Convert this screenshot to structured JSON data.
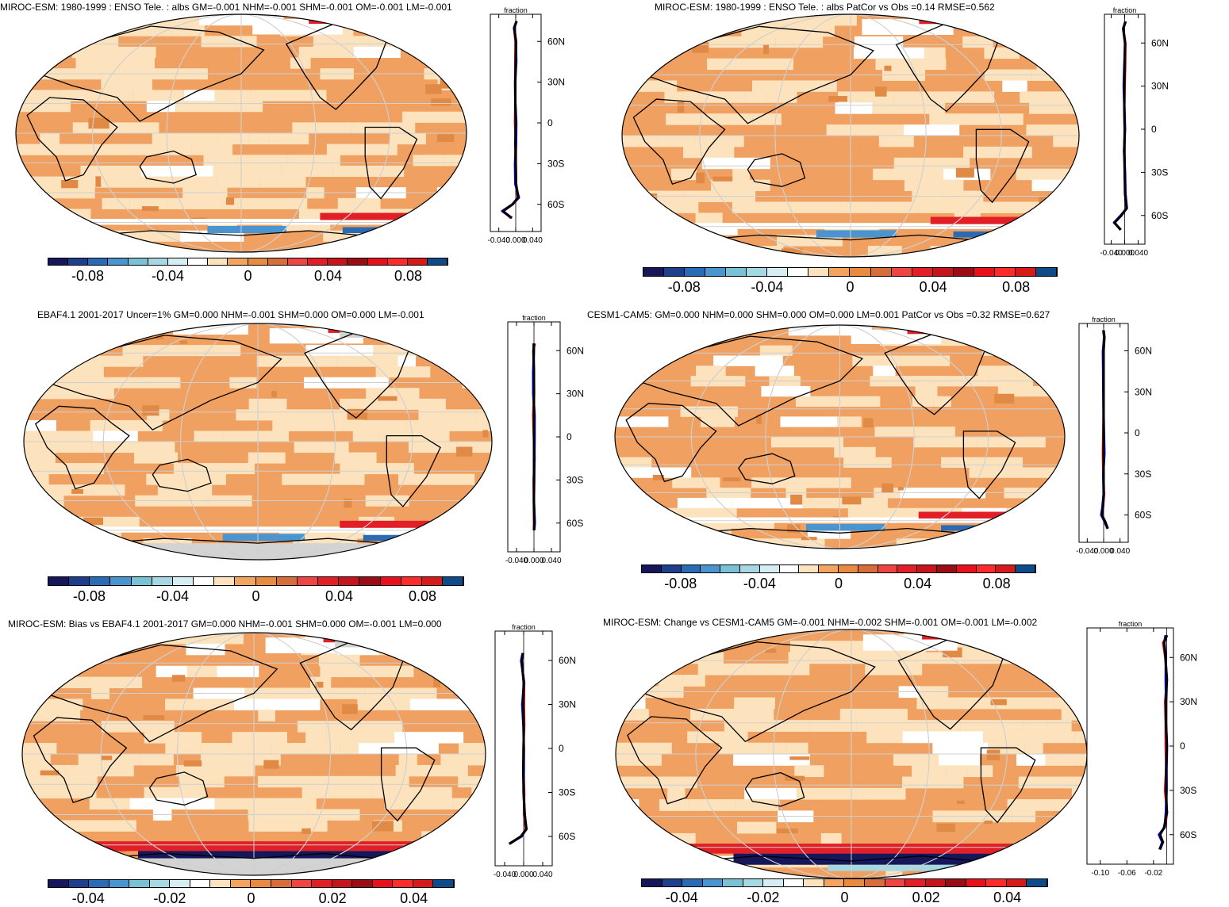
{
  "colors": {
    "palette": [
      "#15175a",
      "#1d3f8c",
      "#2a6bb6",
      "#4a95cf",
      "#79c2d5",
      "#a5d8e2",
      "#d6eef3",
      "#ffffff",
      "#fde3bd",
      "#f3a45e",
      "#e88a3f",
      "#d66d3a",
      "#ee4442",
      "#e21f26",
      "#c6131c",
      "#9a0d14",
      "#e8101a",
      "#ff2a2a",
      "#d61a1a",
      "#0d4b8a"
    ],
    "ocean_light": "#fde3bd",
    "ocean_mid": "#f0a060",
    "land_missing": "#d3d3d3",
    "profile_obs": "#ff0000",
    "profile_model": "#0000ff",
    "profile_mean": "#000000"
  },
  "panels": [
    {
      "id": "p1",
      "title": "MIROC-ESM: 1980-1999 : ENSO Tele. : albs GM=-0.001 NHM=-0.001 SHM=-0.001 OM=-0.001 LM=-0.001",
      "profile_label": "fraction",
      "lat_ticks": [
        "60N",
        "30N",
        "0",
        "30S",
        "60S"
      ],
      "x_ticks": [
        "-0.040",
        "0.000",
        "0.040"
      ],
      "colorbar_labels": [
        "-0.08",
        "-0.04",
        "0",
        "0.04",
        "0.08"
      ],
      "missing": false
    },
    {
      "id": "p2",
      "title": "MIROC-ESM: 1980-1999 : ENSO Tele. : albs PatCor vs Obs =0.14 RMSE=0.562",
      "profile_label": "fraction",
      "lat_ticks": [
        "60N",
        "30N",
        "0",
        "30S",
        "60S"
      ],
      "x_ticks": [
        "-0.040",
        "0.000",
        "0.040"
      ],
      "colorbar_labels": [
        "-0.08",
        "-0.04",
        "0",
        "0.04",
        "0.08"
      ],
      "missing": false
    },
    {
      "id": "p3",
      "title": "EBAF4.1 2001-2017 Uncer=1% GM=0.000 NHM=-0.001 SHM=0.000 OM=0.000 LM=-0.001",
      "profile_label": "fraction",
      "lat_ticks": [
        "60N",
        "30N",
        "0",
        "30S",
        "60S"
      ],
      "x_ticks": [
        "-0.040",
        "0.000",
        "0.040"
      ],
      "colorbar_labels": [
        "-0.08",
        "-0.04",
        "0",
        "0.04",
        "0.08"
      ],
      "missing": true
    },
    {
      "id": "p4",
      "title": "CESM1-CAM5: GM=0.000 NHM=0.000 SHM=0.000 OM=0.000 LM=0.001 PatCor vs Obs =0.32 RMSE=0.627",
      "profile_label": "fraction",
      "lat_ticks": [
        "60N",
        "30N",
        "0",
        "30S",
        "60S"
      ],
      "x_ticks": [
        "-0.040",
        "0.000",
        "0.040"
      ],
      "colorbar_labels": [
        "-0.08",
        "-0.04",
        "0",
        "0.04",
        "0.08"
      ],
      "missing": false
    },
    {
      "id": "p5",
      "title": "MIROC-ESM: Bias vs EBAF4.1 2001-2017 GM=0.000 NHM=-0.001 SHM=0.000 OM=-0.001 LM=0.000",
      "profile_label": "fraction",
      "lat_ticks": [
        "60N",
        "30N",
        "0",
        "30S",
        "60S"
      ],
      "x_ticks": [
        "-0.040",
        "0.000",
        "0.040"
      ],
      "colorbar_labels": [
        "-0.04",
        "-0.02",
        "0",
        "0.02",
        "0.04"
      ],
      "missing": true
    },
    {
      "id": "p6",
      "title": "MIROC-ESM: Change vs CESM1-CAM5 GM=-0.001 NHM=-0.002 SHM=-0.001 OM=-0.001 LM=-0.002",
      "profile_label": "fraction",
      "lat_ticks": [
        "60N",
        "30N",
        "0",
        "30S",
        "60S"
      ],
      "x_ticks": [
        "-0.10",
        "-0.06",
        "-0.02"
      ],
      "colorbar_labels": [
        "-0.04",
        "-0.02",
        "0",
        "0.02",
        "0.04"
      ],
      "missing": false
    }
  ],
  "chart_data": [
    {
      "type": "heatmap",
      "title": "MIROC-ESM: 1980-1999 : ENSO Tele. : albs GM=-0.001 NHM=-0.001 SHM=-0.001 OM=-0.001 LM=-0.001",
      "colorbar_range": [
        -0.1,
        0.1
      ],
      "profile": {
        "type": "line",
        "xlabel": "fraction",
        "xlim": [
          -0.06,
          0.06
        ],
        "lat": [
          75,
          70,
          60,
          45,
          30,
          15,
          0,
          -15,
          -30,
          -45,
          -55,
          -60,
          -65,
          -70
        ],
        "values": [
          0.002,
          -0.004,
          0.001,
          0.0,
          -0.001,
          -0.001,
          0.0,
          -0.001,
          0.0,
          0.001,
          0.006,
          -0.008,
          -0.03,
          -0.01
        ]
      }
    },
    {
      "type": "heatmap",
      "title": "MIROC-ESM: 1980-1999 : ENSO Tele. : albs PatCor vs Obs =0.14 RMSE=0.562",
      "colorbar_range": [
        -0.1,
        0.1
      ],
      "profile": {
        "type": "line",
        "xlabel": "fraction",
        "xlim": [
          -0.06,
          0.06
        ],
        "lat": [
          75,
          70,
          60,
          45,
          30,
          15,
          0,
          -15,
          -30,
          -45,
          -55,
          -60,
          -65,
          -70
        ],
        "values": [
          0.002,
          -0.004,
          0.001,
          0.0,
          -0.001,
          -0.001,
          0.0,
          -0.001,
          0.0,
          0.001,
          0.006,
          -0.01,
          -0.03,
          -0.012
        ]
      }
    },
    {
      "type": "heatmap",
      "title": "EBAF4.1 2001-2017 Uncer=1% GM=0.000 NHM=-0.001 SHM=0.000 OM=0.000 LM=-0.001",
      "colorbar_range": [
        -0.1,
        0.1
      ],
      "profile": {
        "type": "line",
        "xlabel": "fraction",
        "xlim": [
          -0.06,
          0.06
        ],
        "lat": [
          65,
          60,
          45,
          30,
          15,
          0,
          -15,
          -30,
          -45,
          -60,
          -65
        ],
        "values": [
          0.0,
          -0.001,
          0.0,
          0.0,
          0.0,
          0.0,
          0.0,
          0.0,
          0.0,
          0.001,
          0.0
        ]
      }
    },
    {
      "type": "heatmap",
      "title": "CESM1-CAM5: GM=0.000 NHM=0.000 SHM=0.000 OM=0.000 LM=0.001 PatCor vs Obs =0.32 RMSE=0.627",
      "colorbar_range": [
        -0.1,
        0.1
      ],
      "profile": {
        "type": "line",
        "xlabel": "fraction",
        "xlim": [
          -0.06,
          0.06
        ],
        "lat": [
          75,
          70,
          60,
          45,
          30,
          15,
          0,
          -15,
          -30,
          -45,
          -55,
          -60,
          -65,
          -70
        ],
        "values": [
          0.0,
          0.002,
          0.0,
          0.0,
          0.0,
          0.0,
          0.0,
          0.0,
          0.0,
          0.0,
          -0.002,
          -0.004,
          0.004,
          0.01
        ]
      }
    },
    {
      "type": "heatmap",
      "title": "MIROC-ESM: Bias vs EBAF4.1 2001-2017 GM=0.000 NHM=-0.001 SHM=0.000 OM=-0.001 LM=0.000",
      "colorbar_range": [
        -0.05,
        0.05
      ],
      "profile": {
        "type": "line",
        "xlabel": "fraction",
        "xlim": [
          -0.06,
          0.06
        ],
        "lat": [
          65,
          60,
          45,
          30,
          15,
          0,
          -15,
          -30,
          -45,
          -55,
          -60,
          -65
        ],
        "values": [
          -0.001,
          -0.004,
          0.0,
          -0.001,
          0.0,
          0.0,
          -0.001,
          0.0,
          0.002,
          0.006,
          -0.006,
          -0.03
        ]
      }
    },
    {
      "type": "heatmap",
      "title": "MIROC-ESM: Change vs CESM1-CAM5 GM=-0.001 NHM=-0.002 SHM=-0.001 OM=-0.001 LM=-0.002",
      "colorbar_range": [
        -0.05,
        0.05
      ],
      "profile": {
        "type": "line",
        "xlabel": "fraction",
        "xlim": [
          -0.12,
          0.01
        ],
        "lat": [
          75,
          70,
          60,
          45,
          30,
          15,
          0,
          -15,
          -30,
          -45,
          -55,
          -60,
          -65,
          -70
        ],
        "values": [
          0.0,
          -0.004,
          -0.002,
          0.0,
          -0.001,
          -0.001,
          0.0,
          -0.001,
          -0.001,
          0.0,
          -0.004,
          -0.01,
          -0.006,
          -0.01
        ]
      }
    }
  ]
}
